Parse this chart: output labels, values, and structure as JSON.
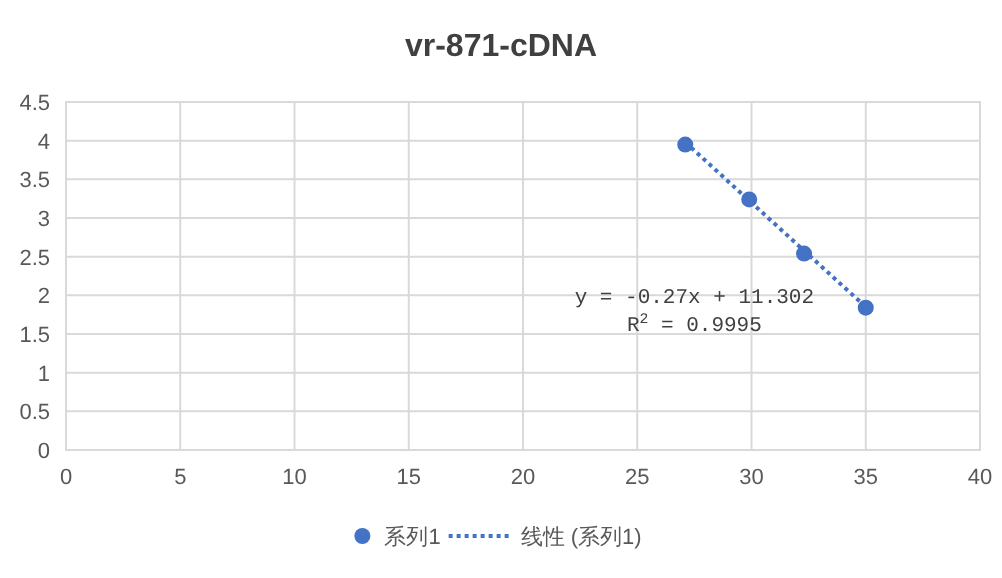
{
  "chart_data": {
    "type": "scatter",
    "title": "vr-871-cDNA",
    "xlim": [
      0,
      40
    ],
    "xticks": [
      0,
      5,
      10,
      15,
      20,
      25,
      30,
      35,
      40
    ],
    "ylim": [
      0,
      4.5
    ],
    "yticks": [
      0,
      0.5,
      1,
      1.5,
      2,
      2.5,
      3,
      3.5,
      4,
      4.5
    ],
    "grid": true,
    "legend": "bottom",
    "series": [
      {
        "name": "系列1",
        "marker": "circle",
        "color": "#4472c4",
        "x": [
          27.1,
          29.9,
          32.3,
          35.0
        ],
        "values": [
          3.95,
          3.24,
          2.54,
          1.84
        ]
      },
      {
        "name": "线性 (系列1)",
        "type": "line",
        "line_style": "dotted",
        "color": "#4472c4",
        "x": [
          27.1,
          35.0
        ],
        "values": [
          3.98,
          1.85
        ]
      }
    ],
    "annotations": [
      "y = -0.27x + 11.302",
      "R$^{2}$ = 0.9995"
    ]
  }
}
